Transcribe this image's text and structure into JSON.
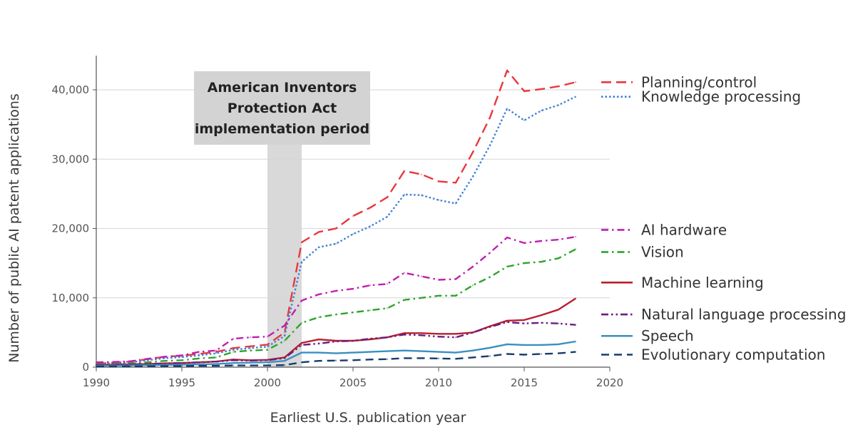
{
  "chart_data": {
    "type": "line",
    "title": "",
    "xlabel": "Earliest U.S. publication year",
    "ylabel": "Number of public AI patent applications",
    "xlim": [
      1990,
      2020
    ],
    "ylim": [
      0,
      45000
    ],
    "xticks": [
      1990,
      1995,
      2000,
      2005,
      2010,
      2015,
      2020
    ],
    "xtick_labels": [
      "1990",
      "1995",
      "2000",
      "2005",
      "2010",
      "2015",
      "2020"
    ],
    "yticks": [
      0,
      10000,
      20000,
      30000,
      40000
    ],
    "ytick_labels": [
      "0",
      "10,000",
      "20,000",
      "30,000",
      "40,000"
    ],
    "grid": "horizontal",
    "legend_position": "right",
    "annotation": {
      "lines": [
        "American Inventors",
        "Protection Act",
        "implementation period"
      ],
      "x_start": 2000,
      "x_end": 2002
    },
    "series": [
      {
        "name": "Planning/control",
        "color": "#e8383d",
        "dash": "dashed",
        "x": [
          1990,
          1991,
          1992,
          1993,
          1994,
          1995,
          1996,
          1997,
          1998,
          1999,
          2000,
          2001,
          2002,
          2003,
          2004,
          2005,
          2006,
          2007,
          2008,
          2009,
          2010,
          2011,
          2012,
          2013,
          2014,
          2015,
          2016,
          2017,
          2018
        ],
        "y": [
          500,
          650,
          800,
          1150,
          1500,
          1650,
          1900,
          2200,
          2750,
          3000,
          3250,
          5000,
          18000,
          19500,
          20000,
          21800,
          23000,
          24500,
          28300,
          27800,
          26800,
          26600,
          31000,
          36000,
          42800,
          39800,
          40100,
          40500,
          41100
        ]
      },
      {
        "name": "Knowledge processing",
        "color": "#3f7fd6",
        "dash": "dotted",
        "x": [
          1990,
          1991,
          1992,
          1993,
          1994,
          1995,
          1996,
          1997,
          1998,
          1999,
          2000,
          2001,
          2002,
          2003,
          2004,
          2005,
          2006,
          2007,
          2008,
          2009,
          2010,
          2011,
          2012,
          2013,
          2014,
          2015,
          2016,
          2017,
          2018
        ],
        "y": [
          400,
          550,
          700,
          1000,
          1300,
          1450,
          1700,
          2000,
          2500,
          2750,
          2950,
          4500,
          15200,
          17300,
          17800,
          19200,
          20300,
          21700,
          24900,
          24800,
          24100,
          23600,
          27500,
          32000,
          37300,
          35600,
          37000,
          37800,
          39000
        ]
      },
      {
        "name": "AI hardware",
        "color": "#c01fb0",
        "dash": "dashdot",
        "x": [
          1990,
          1991,
          1992,
          1993,
          1994,
          1995,
          1996,
          1997,
          1998,
          1999,
          2000,
          2001,
          2002,
          2003,
          2004,
          2005,
          2006,
          2007,
          2008,
          2009,
          2010,
          2011,
          2012,
          2013,
          2014,
          2015,
          2016,
          2017,
          2018
        ],
        "y": [
          700,
          750,
          850,
          1200,
          1500,
          1700,
          2200,
          2400,
          4100,
          4300,
          4400,
          6000,
          9600,
          10500,
          11000,
          11300,
          11800,
          12000,
          13600,
          13100,
          12600,
          12700,
          14500,
          16500,
          18700,
          17900,
          18200,
          18400,
          18800
        ]
      },
      {
        "name": "Vision",
        "color": "#2ea32e",
        "dash": "dashdot",
        "x": [
          1990,
          1991,
          1992,
          1993,
          1994,
          1995,
          1996,
          1997,
          1998,
          1999,
          2000,
          2001,
          2002,
          2003,
          2004,
          2005,
          2006,
          2007,
          2008,
          2009,
          2010,
          2011,
          2012,
          2013,
          2014,
          2015,
          2016,
          2017,
          2018
        ],
        "y": [
          400,
          450,
          550,
          700,
          900,
          1000,
          1250,
          1400,
          2200,
          2400,
          2500,
          3800,
          6400,
          7200,
          7600,
          7900,
          8200,
          8500,
          9700,
          10000,
          10300,
          10300,
          11800,
          13000,
          14500,
          15000,
          15200,
          15700,
          17000
        ]
      },
      {
        "name": "Machine learning",
        "color": "#b5202e",
        "dash": "solid",
        "x": [
          1990,
          1991,
          1992,
          1993,
          1994,
          1995,
          1996,
          1997,
          1998,
          1999,
          2000,
          2001,
          2002,
          2003,
          2004,
          2005,
          2006,
          2007,
          2008,
          2009,
          2010,
          2011,
          2012,
          2013,
          2014,
          2015,
          2016,
          2017,
          2018
        ],
        "y": [
          300,
          350,
          400,
          450,
          550,
          600,
          700,
          800,
          1100,
          1000,
          1050,
          1400,
          3500,
          4000,
          3800,
          3800,
          4000,
          4300,
          4900,
          4900,
          4800,
          4800,
          5000,
          5900,
          6700,
          6800,
          7500,
          8300,
          9900
        ]
      },
      {
        "name": "Natural language processing",
        "color": "#6c1d7f",
        "dash": "dashdotdot",
        "x": [
          1990,
          1991,
          1992,
          1993,
          1994,
          1995,
          1996,
          1997,
          1998,
          1999,
          2000,
          2001,
          2002,
          2003,
          2004,
          2005,
          2006,
          2007,
          2008,
          2009,
          2010,
          2011,
          2012,
          2013,
          2014,
          2015,
          2016,
          2017,
          2018
        ],
        "y": [
          300,
          350,
          400,
          450,
          550,
          600,
          700,
          800,
          1000,
          950,
          1000,
          1300,
          3200,
          3400,
          3700,
          3800,
          4100,
          4300,
          4700,
          4600,
          4400,
          4300,
          5000,
          5800,
          6500,
          6300,
          6400,
          6300,
          6100
        ]
      },
      {
        "name": "Speech",
        "color": "#3a8fc0",
        "dash": "solid",
        "x": [
          1990,
          1991,
          1992,
          1993,
          1994,
          1995,
          1996,
          1997,
          1998,
          1999,
          2000,
          2001,
          2002,
          2003,
          2004,
          2005,
          2006,
          2007,
          2008,
          2009,
          2010,
          2011,
          2012,
          2013,
          2014,
          2015,
          2016,
          2017,
          2018
        ],
        "y": [
          200,
          220,
          250,
          280,
          320,
          350,
          400,
          450,
          600,
          650,
          700,
          900,
          2100,
          2100,
          2000,
          2100,
          2200,
          2300,
          2400,
          2300,
          2200,
          2100,
          2400,
          2800,
          3300,
          3200,
          3200,
          3300,
          3700
        ]
      },
      {
        "name": "Evolutionary computation",
        "color": "#173b6e",
        "dash": "longdash",
        "x": [
          1990,
          1991,
          1992,
          1993,
          1994,
          1995,
          1996,
          1997,
          1998,
          1999,
          2000,
          2001,
          2002,
          2003,
          2004,
          2005,
          2006,
          2007,
          2008,
          2009,
          2010,
          2011,
          2012,
          2013,
          2014,
          2015,
          2016,
          2017,
          2018
        ],
        "y": [
          100,
          110,
          120,
          130,
          150,
          160,
          180,
          200,
          250,
          250,
          250,
          300,
          700,
          900,
          950,
          1000,
          1100,
          1150,
          1300,
          1300,
          1250,
          1200,
          1400,
          1600,
          1900,
          1800,
          1900,
          2000,
          2200
        ]
      }
    ],
    "legend_entries": [
      {
        "series": "Planning/control",
        "label": "Planning/control",
        "y": 41100
      },
      {
        "series": "Knowledge processing",
        "label": "Knowledge processing",
        "y": 39000
      },
      {
        "series": "AI hardware",
        "label": "AI hardware",
        "y": 19800
      },
      {
        "series": "Vision",
        "label": "Vision",
        "y": 16600
      },
      {
        "series": "Machine learning",
        "label": "Machine learning",
        "y": 12200
      },
      {
        "series": "Natural language processing",
        "label": "Natural language processing",
        "y": 7600
      },
      {
        "series": "Speech",
        "label": "Speech",
        "y": 4500
      },
      {
        "series": "Evolutionary computation",
        "label": "Evolutionary computation",
        "y": 1800
      }
    ]
  }
}
